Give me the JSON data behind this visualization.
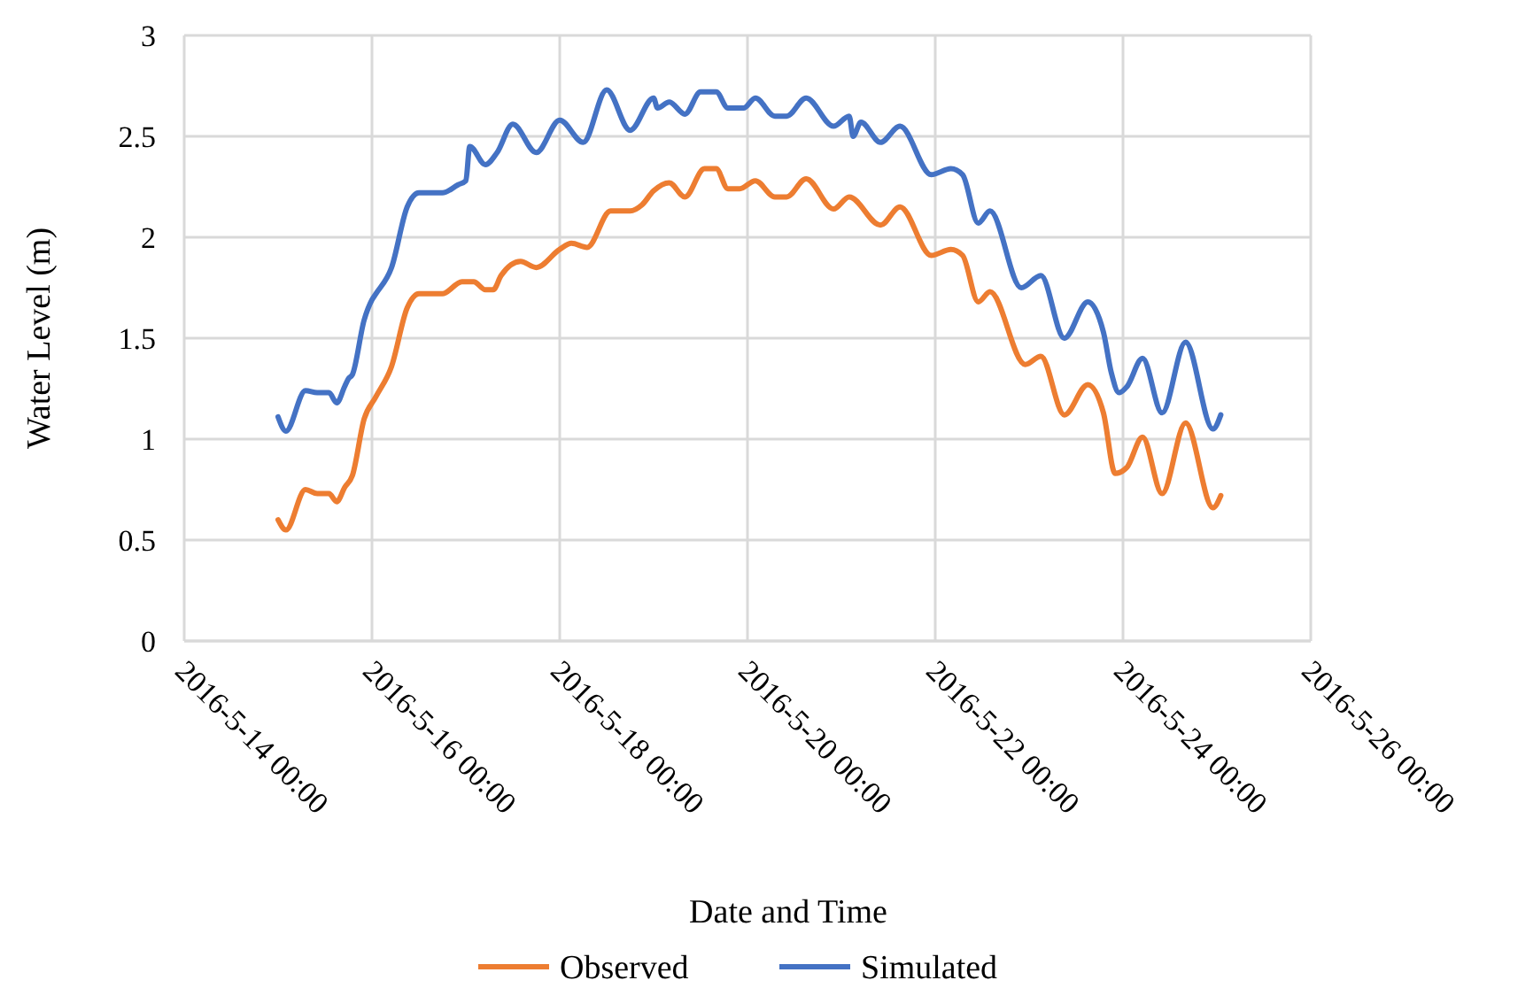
{
  "chart_data": {
    "type": "line",
    "xlabel": "Date and Time",
    "ylabel": "Water Level (m)",
    "xlim": [
      "2016-05-14T00:00",
      "2016-05-26T00:00"
    ],
    "xticks": [
      {
        "value": "2016-05-14T00:00",
        "label": "2016-5-14 00:00"
      },
      {
        "value": "2016-05-16T00:00",
        "label": "2016-5-16 00:00"
      },
      {
        "value": "2016-05-18T00:00",
        "label": "2016-5-18 00:00"
      },
      {
        "value": "2016-05-20T00:00",
        "label": "2016-5-20 00:00"
      },
      {
        "value": "2016-05-22T00:00",
        "label": "2016-5-22 00:00"
      },
      {
        "value": "2016-05-24T00:00",
        "label": "2016-5-24 00:00"
      },
      {
        "value": "2016-05-26T00:00",
        "label": "2016-5-26 00:00"
      }
    ],
    "ylim": [
      0,
      3
    ],
    "yticks": [
      0,
      0.5,
      1,
      1.5,
      2,
      2.5,
      3
    ],
    "grid": true,
    "legend": "bottom",
    "marker": "none",
    "line_style": "solid",
    "series": [
      {
        "name": "Observed",
        "color": "#ed7d31",
        "x": [
          "2016-05-15T00:00",
          "2016-05-15T02:00",
          "2016-05-15T07:00",
          "2016-05-15T10:00",
          "2016-05-15T13:00",
          "2016-05-15T15:00",
          "2016-05-15T17:00",
          "2016-05-15T19:00",
          "2016-05-15T22:00",
          "2016-05-16T01:00",
          "2016-05-16T05:00",
          "2016-05-16T09:00",
          "2016-05-16T12:00",
          "2016-05-16T18:00",
          "2016-05-16T23:00",
          "2016-05-17T02:00",
          "2016-05-17T05:00",
          "2016-05-17T07:00",
          "2016-05-17T09:00",
          "2016-05-17T14:00",
          "2016-05-17T18:00",
          "2016-05-18T00:00",
          "2016-05-18T03:00",
          "2016-05-18T07:00",
          "2016-05-18T13:00",
          "2016-05-18T18:00",
          "2016-05-18T21:00",
          "2016-05-19T00:00",
          "2016-05-19T04:00",
          "2016-05-19T08:00",
          "2016-05-19T13:00",
          "2016-05-19T16:00",
          "2016-05-19T19:00",
          "2016-05-19T22:00",
          "2016-05-20T02:00",
          "2016-05-20T07:00",
          "2016-05-20T10:00",
          "2016-05-20T15:00",
          "2016-05-20T22:00",
          "2016-05-21T02:00",
          "2016-05-21T10:00",
          "2016-05-21T15:00",
          "2016-05-21T23:00",
          "2016-05-22T04:00",
          "2016-05-22T07:00",
          "2016-05-22T11:00",
          "2016-05-22T14:00",
          "2016-05-22T23:00",
          "2016-05-23T03:00",
          "2016-05-23T09:00",
          "2016-05-23T15:00",
          "2016-05-23T19:00",
          "2016-05-23T22:00",
          "2016-05-24T01:00",
          "2016-05-24T05:00",
          "2016-05-24T10:00",
          "2016-05-24T16:00",
          "2016-05-24T23:00",
          "2016-05-25T01:00"
        ],
        "values": [
          0.6,
          0.55,
          0.75,
          0.73,
          0.73,
          0.69,
          0.76,
          0.82,
          1.1,
          1.21,
          1.36,
          1.65,
          1.72,
          1.72,
          1.78,
          1.78,
          1.74,
          1.74,
          1.81,
          1.88,
          1.85,
          1.94,
          1.97,
          1.95,
          2.13,
          2.13,
          2.16,
          2.23,
          2.27,
          2.2,
          2.34,
          2.34,
          2.24,
          2.24,
          2.28,
          2.2,
          2.2,
          2.29,
          2.14,
          2.2,
          2.06,
          2.15,
          1.91,
          1.94,
          1.91,
          1.68,
          1.73,
          1.37,
          1.41,
          1.12,
          1.27,
          1.13,
          0.83,
          0.86,
          1.01,
          0.73,
          1.08,
          0.66,
          0.72
        ]
      },
      {
        "name": "Simulated",
        "color": "#4472c4",
        "x": [
          "2016-05-15T00:00",
          "2016-05-15T02:00",
          "2016-05-15T07:00",
          "2016-05-15T10:00",
          "2016-05-15T13:00",
          "2016-05-15T15:00",
          "2016-05-15T17:00",
          "2016-05-15T18:00",
          "2016-05-15T19:00",
          "2016-05-15T22:00",
          "2016-05-16T00:00",
          "2016-05-16T01:00",
          "2016-05-16T05:00",
          "2016-05-16T09:00",
          "2016-05-16T12:00",
          "2016-05-16T18:00",
          "2016-05-16T22:00",
          "2016-05-17T00:00",
          "2016-05-17T01:00",
          "2016-05-17T05:00",
          "2016-05-17T08:00",
          "2016-05-17T12:00",
          "2016-05-17T18:00",
          "2016-05-18T00:00",
          "2016-05-18T06:00",
          "2016-05-18T12:00",
          "2016-05-18T18:00",
          "2016-05-19T00:00",
          "2016-05-19T01:00",
          "2016-05-19T04:00",
          "2016-05-19T08:00",
          "2016-05-19T12:00",
          "2016-05-19T16:00",
          "2016-05-19T19:00",
          "2016-05-19T23:00",
          "2016-05-20T02:00",
          "2016-05-20T07:00",
          "2016-05-20T10:00",
          "2016-05-20T15:00",
          "2016-05-20T22:00",
          "2016-05-21T02:00",
          "2016-05-21T03:00",
          "2016-05-21T05:00",
          "2016-05-21T10:00",
          "2016-05-21T15:00",
          "2016-05-21T23:00",
          "2016-05-22T04:00",
          "2016-05-22T07:00",
          "2016-05-22T11:00",
          "2016-05-22T14:00",
          "2016-05-22T22:00",
          "2016-05-23T03:00",
          "2016-05-23T09:00",
          "2016-05-23T15:00",
          "2016-05-23T19:00",
          "2016-05-23T21:00",
          "2016-05-23T23:00",
          "2016-05-24T01:00",
          "2016-05-24T05:00",
          "2016-05-24T10:00",
          "2016-05-24T16:00",
          "2016-05-24T23:00",
          "2016-05-25T01:00"
        ],
        "values": [
          1.11,
          1.04,
          1.24,
          1.23,
          1.23,
          1.18,
          1.26,
          1.3,
          1.32,
          1.59,
          1.69,
          1.72,
          1.85,
          2.15,
          2.22,
          2.22,
          2.26,
          2.28,
          2.45,
          2.36,
          2.42,
          2.56,
          2.42,
          2.58,
          2.47,
          2.73,
          2.53,
          2.69,
          2.64,
          2.67,
          2.61,
          2.72,
          2.72,
          2.64,
          2.64,
          2.69,
          2.6,
          2.6,
          2.69,
          2.55,
          2.6,
          2.5,
          2.57,
          2.47,
          2.55,
          2.31,
          2.34,
          2.31,
          2.07,
          2.13,
          1.75,
          1.81,
          1.5,
          1.68,
          1.53,
          1.33,
          1.23,
          1.26,
          1.4,
          1.13,
          1.48,
          1.05,
          1.12
        ]
      }
    ]
  }
}
